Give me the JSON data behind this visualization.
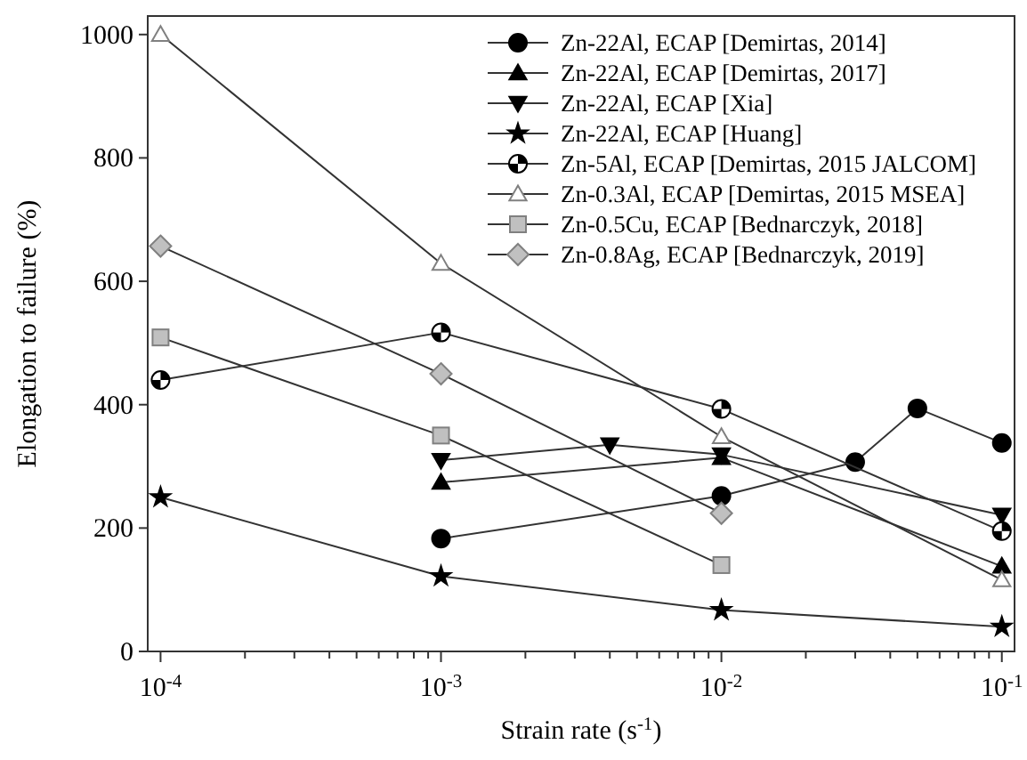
{
  "chart_data": {
    "type": "line",
    "xlabel": "Strain rate (s$^{-1}$)",
    "ylabel": "Elongation to failure (%)",
    "log": "x",
    "grid": false,
    "legend": "top right",
    "line_style": "solid",
    "xlim": [
      9e-05,
      0.111
    ],
    "ylim": [
      0,
      1030
    ],
    "xticks": [
      {
        "value": 0.0001,
        "label": "10$^{-4}$"
      },
      {
        "value": 0.0002,
        "label": null
      },
      {
        "value": 0.0003,
        "label": null
      },
      {
        "value": 0.0004,
        "label": null
      },
      {
        "value": 0.0005,
        "label": null
      },
      {
        "value": 0.0006,
        "label": null
      },
      {
        "value": 0.0007,
        "label": null
      },
      {
        "value": 0.0008,
        "label": null
      },
      {
        "value": 0.0009,
        "label": null
      },
      {
        "value": 0.001,
        "label": "10$^{-3}$"
      },
      {
        "value": 0.002,
        "label": null
      },
      {
        "value": 0.003,
        "label": null
      },
      {
        "value": 0.004,
        "label": null
      },
      {
        "value": 0.005,
        "label": null
      },
      {
        "value": 0.006,
        "label": null
      },
      {
        "value": 0.007,
        "label": null
      },
      {
        "value": 0.008,
        "label": null
      },
      {
        "value": 0.009,
        "label": null
      },
      {
        "value": 0.01,
        "label": "10$^{-2}$"
      },
      {
        "value": 0.02,
        "label": null
      },
      {
        "value": 0.03,
        "label": null
      },
      {
        "value": 0.04,
        "label": null
      },
      {
        "value": 0.05,
        "label": null
      },
      {
        "value": 0.06,
        "label": null
      },
      {
        "value": 0.07,
        "label": null
      },
      {
        "value": 0.08,
        "label": null
      },
      {
        "value": 0.09,
        "label": null
      },
      {
        "value": 0.1,
        "label": "10$^{-1}$"
      }
    ],
    "yticks": [
      0,
      200,
      400,
      600,
      800,
      1000
    ],
    "series": [
      {
        "name": "Zn-22Al, ECAP [Demirtas, 2014]",
        "color": "#000000",
        "marker": "circle",
        "x": [
          0.001,
          0.01,
          0.03,
          0.05,
          0.1
        ],
        "values": [
          183,
          252,
          307,
          394,
          338
        ]
      },
      {
        "name": "Zn-22Al, ECAP [Demirtas, 2017]",
        "color": "#000000",
        "marker": "triangle",
        "x": [
          0.001,
          0.01,
          0.1
        ],
        "values": [
          274,
          314,
          138
        ]
      },
      {
        "name": "Zn-22Al, ECAP [Xia]",
        "color": "#000000",
        "marker": "triangle-down",
        "x": [
          0.001,
          0.004,
          0.01,
          0.1
        ],
        "values": [
          310,
          335,
          319,
          221
        ]
      },
      {
        "name": "Zn-22Al, ECAP [Huang]",
        "color": "#000000",
        "marker": "star",
        "x": [
          0.0001,
          0.001,
          0.01,
          0.1
        ],
        "values": [
          250,
          122,
          67,
          40
        ]
      },
      {
        "name": "Zn-5Al, ECAP [Demirtas, 2015 JALCOM]",
        "color": "#000000",
        "marker": "circle-quarters",
        "x": [
          0.0001,
          0.001,
          0.01,
          0.1
        ],
        "values": [
          440,
          517,
          393,
          195
        ]
      },
      {
        "name": "Zn-0.3Al, ECAP [Demirtas, 2015 MSEA]",
        "color": "#808080",
        "marker": "triangle-open",
        "x": [
          0.0001,
          0.001,
          0.01,
          0.1
        ],
        "values": [
          1000,
          629,
          348,
          116
        ]
      },
      {
        "name": "Zn-0.5Cu, ECAP [Bednarczyk, 2018]",
        "color": "#c0c0c0",
        "marker": "square",
        "x": [
          0.0001,
          0.001,
          0.01
        ],
        "values": [
          509,
          350,
          140
        ]
      },
      {
        "name": "Zn-0.8Ag, ECAP [Bednarczyk, 2019]",
        "color": "#c0c0c0",
        "marker": "diamond",
        "x": [
          0.0001,
          0.001,
          0.01
        ],
        "values": [
          657,
          450,
          224
        ]
      }
    ]
  }
}
